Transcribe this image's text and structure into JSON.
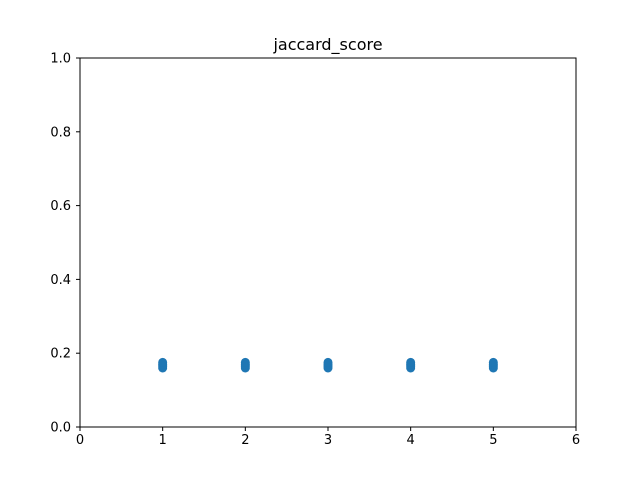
{
  "chart_data": {
    "type": "scatter",
    "title": "jaccard_score",
    "xlabel": "",
    "ylabel": "",
    "xlim": [
      0,
      6
    ],
    "ylim": [
      0.0,
      1.0
    ],
    "xticks": [
      0,
      1,
      2,
      3,
      4,
      5,
      6
    ],
    "xtick_labels": [
      "0",
      "1",
      "2",
      "3",
      "4",
      "5",
      "6"
    ],
    "yticks": [
      0.0,
      0.2,
      0.4,
      0.6,
      0.8,
      1.0
    ],
    "ytick_labels": [
      "0.0",
      "0.2",
      "0.4",
      "0.6",
      "0.8",
      "1.0"
    ],
    "grid": false,
    "legend": "none",
    "marker_color": "#1f77b4",
    "series": [
      {
        "points": [
          {
            "x": 1,
            "y": 0.16
          },
          {
            "x": 1,
            "y": 0.165
          },
          {
            "x": 1,
            "y": 0.17
          },
          {
            "x": 1,
            "y": 0.175
          },
          {
            "x": 2,
            "y": 0.16
          },
          {
            "x": 2,
            "y": 0.165
          },
          {
            "x": 2,
            "y": 0.17
          },
          {
            "x": 2,
            "y": 0.175
          },
          {
            "x": 3,
            "y": 0.16
          },
          {
            "x": 3,
            "y": 0.165
          },
          {
            "x": 3,
            "y": 0.17
          },
          {
            "x": 3,
            "y": 0.175
          },
          {
            "x": 4,
            "y": 0.16
          },
          {
            "x": 4,
            "y": 0.165
          },
          {
            "x": 4,
            "y": 0.17
          },
          {
            "x": 4,
            "y": 0.175
          },
          {
            "x": 5,
            "y": 0.16
          },
          {
            "x": 5,
            "y": 0.165
          },
          {
            "x": 5,
            "y": 0.17
          },
          {
            "x": 5,
            "y": 0.175
          }
        ]
      }
    ]
  }
}
